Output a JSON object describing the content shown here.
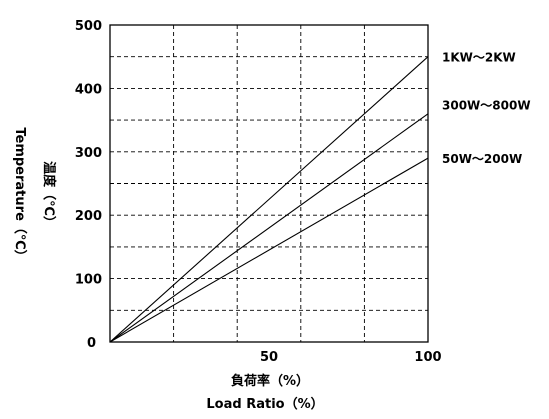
{
  "chart_data": {
    "type": "line",
    "title": "",
    "xlabel": "負荷率（%）",
    "xlabel_en": "Load Ratio（%）",
    "ylabel": "温度（℃）",
    "ylabel_en": "Temperature（℃）",
    "xlim": [
      0,
      100
    ],
    "ylim": [
      0,
      500
    ],
    "x_ticks": [
      50,
      100
    ],
    "x_tick_labels": [
      "50",
      "100"
    ],
    "y_ticks": [
      0,
      100,
      200,
      300,
      400,
      500
    ],
    "y_tick_labels": [
      "0",
      "100",
      "200",
      "300",
      "400",
      "500"
    ],
    "origin_label": "0",
    "grid": true,
    "grid_style": "dashed",
    "x_grid": [
      20,
      40,
      60,
      80
    ],
    "y_grid": [
      50,
      100,
      150,
      200,
      250,
      300,
      350,
      400,
      450
    ],
    "series": [
      {
        "name": "1KW～2KW",
        "x": [
          0,
          100
        ],
        "values": [
          0,
          450
        ]
      },
      {
        "name": "300W～800W",
        "x": [
          0,
          100
        ],
        "values": [
          0,
          360
        ]
      },
      {
        "name": "50W～200W",
        "x": [
          0,
          100
        ],
        "values": [
          0,
          290
        ]
      }
    ],
    "series_label_y": [
      450,
      375,
      290
    ],
    "colors": {
      "line": "#000000",
      "grid": "#000000",
      "frame": "#000000"
    }
  }
}
